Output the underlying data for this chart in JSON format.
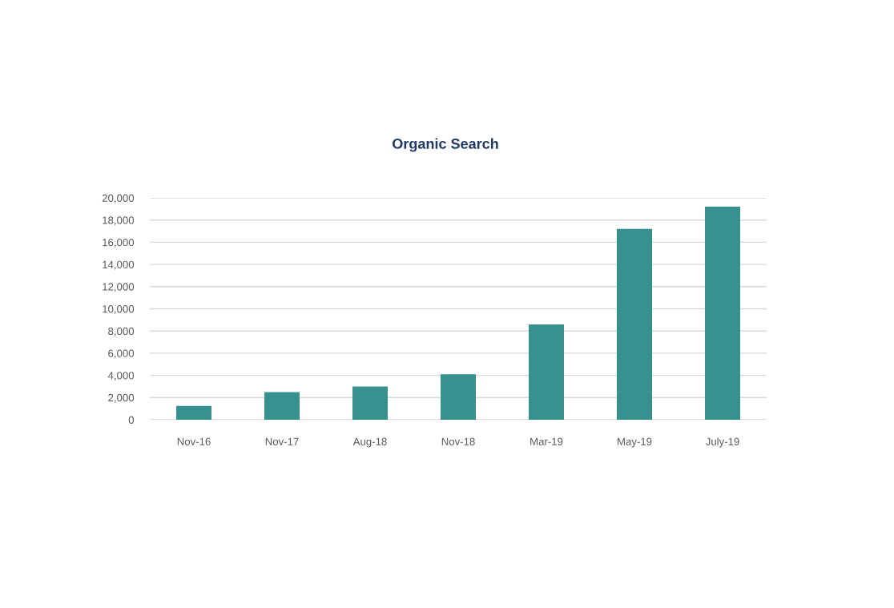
{
  "chart_data": {
    "type": "bar",
    "title": "Organic Search",
    "categories": [
      "Nov-16",
      "Nov-17",
      "Aug-18",
      "Nov-18",
      "Mar-19",
      "May-19",
      "July-19"
    ],
    "values": [
      1250,
      2500,
      3000,
      4100,
      8600,
      17200,
      19200
    ],
    "color": "#36918f",
    "ylim": [
      0,
      20000
    ],
    "yticks": [
      0,
      {
        "value": 2000,
        "label": "2,000"
      },
      {
        "value": 4000,
        "label": "4,000"
      },
      {
        "value": 6000,
        "label": "6,000"
      },
      {
        "value": 8000,
        "label": "8,000"
      },
      {
        "value": 10000,
        "label": "10,000"
      },
      {
        "value": 12000,
        "label": "12,000"
      },
      {
        "value": 14000,
        "label": "14,000"
      },
      {
        "value": 16000,
        "label": "16,000"
      },
      {
        "value": 18000,
        "label": "18,000"
      },
      {
        "value": 20000,
        "label": "20,000"
      }
    ],
    "grid": "y"
  }
}
